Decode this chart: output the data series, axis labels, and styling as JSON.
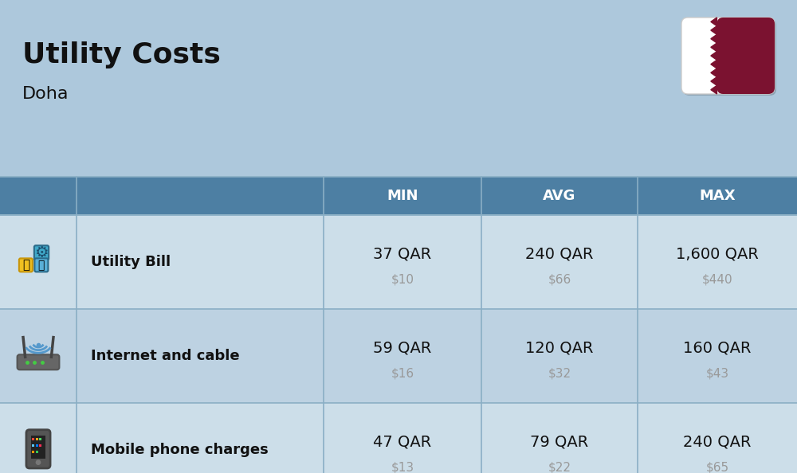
{
  "title": "Utility Costs",
  "subtitle": "Doha",
  "background_color": "#adc8dc",
  "header_color": "#4d7fa3",
  "header_text_color": "#ffffff",
  "row_color_odd": "#ccdee9",
  "row_color_even": "#bdd2e2",
  "col_headers": [
    "MIN",
    "AVG",
    "MAX"
  ],
  "rows": [
    {
      "label": "Utility Bill",
      "min_qar": "37 QAR",
      "min_usd": "$10",
      "avg_qar": "240 QAR",
      "avg_usd": "$66",
      "max_qar": "1,600 QAR",
      "max_usd": "$440"
    },
    {
      "label": "Internet and cable",
      "min_qar": "59 QAR",
      "min_usd": "$16",
      "avg_qar": "120 QAR",
      "avg_usd": "$32",
      "max_qar": "160 QAR",
      "max_usd": "$43"
    },
    {
      "label": "Mobile phone charges",
      "min_qar": "47 QAR",
      "min_usd": "$13",
      "avg_qar": "79 QAR",
      "avg_usd": "$22",
      "max_qar": "240 QAR",
      "max_usd": "$65"
    }
  ],
  "title_fontsize": 26,
  "subtitle_fontsize": 16,
  "header_fontsize": 13,
  "label_fontsize": 13,
  "value_fontsize": 14,
  "usd_fontsize": 11,
  "usd_color": "#999999",
  "border_color": "#8aafc5",
  "flag_maroon": "#7b1230",
  "flag_white": "#ffffff"
}
